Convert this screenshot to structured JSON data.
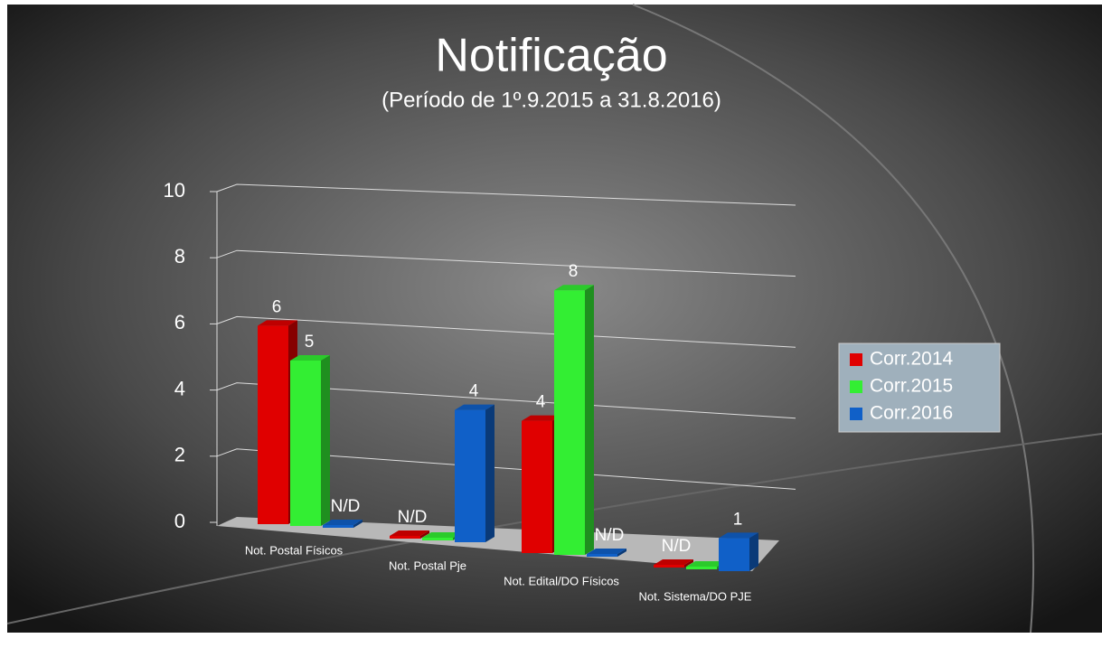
{
  "chart_data": {
    "type": "bar3d",
    "title": "Notificação",
    "subtitle": "(Período de 1º.9.2015  a  31.8.2016)",
    "categories": [
      "Not. Postal Físicos",
      "Not. Postal Pje",
      "Not. Edital/DO Físicos",
      "Not. Sistema/DO PJE"
    ],
    "series": [
      {
        "name": "Corr.2014",
        "color": "#e00000",
        "values": [
          6,
          null,
          4,
          null
        ],
        "value_labels": [
          "6",
          "N/D",
          "4",
          "N/D"
        ]
      },
      {
        "name": "Corr.2015",
        "color": "#33ee33",
        "values": [
          5,
          null,
          8,
          null
        ],
        "value_labels": [
          "5",
          null,
          "8",
          null
        ]
      },
      {
        "name": "Corr.2016",
        "color": "#1060c8",
        "values": [
          null,
          4,
          null,
          1
        ],
        "value_labels": [
          "N/D",
          "4",
          "N/D",
          "1"
        ]
      }
    ],
    "ylim": [
      0,
      10
    ],
    "yticks": [
      0,
      2,
      4,
      6,
      8,
      10
    ],
    "grid": true,
    "legend": "right"
  }
}
